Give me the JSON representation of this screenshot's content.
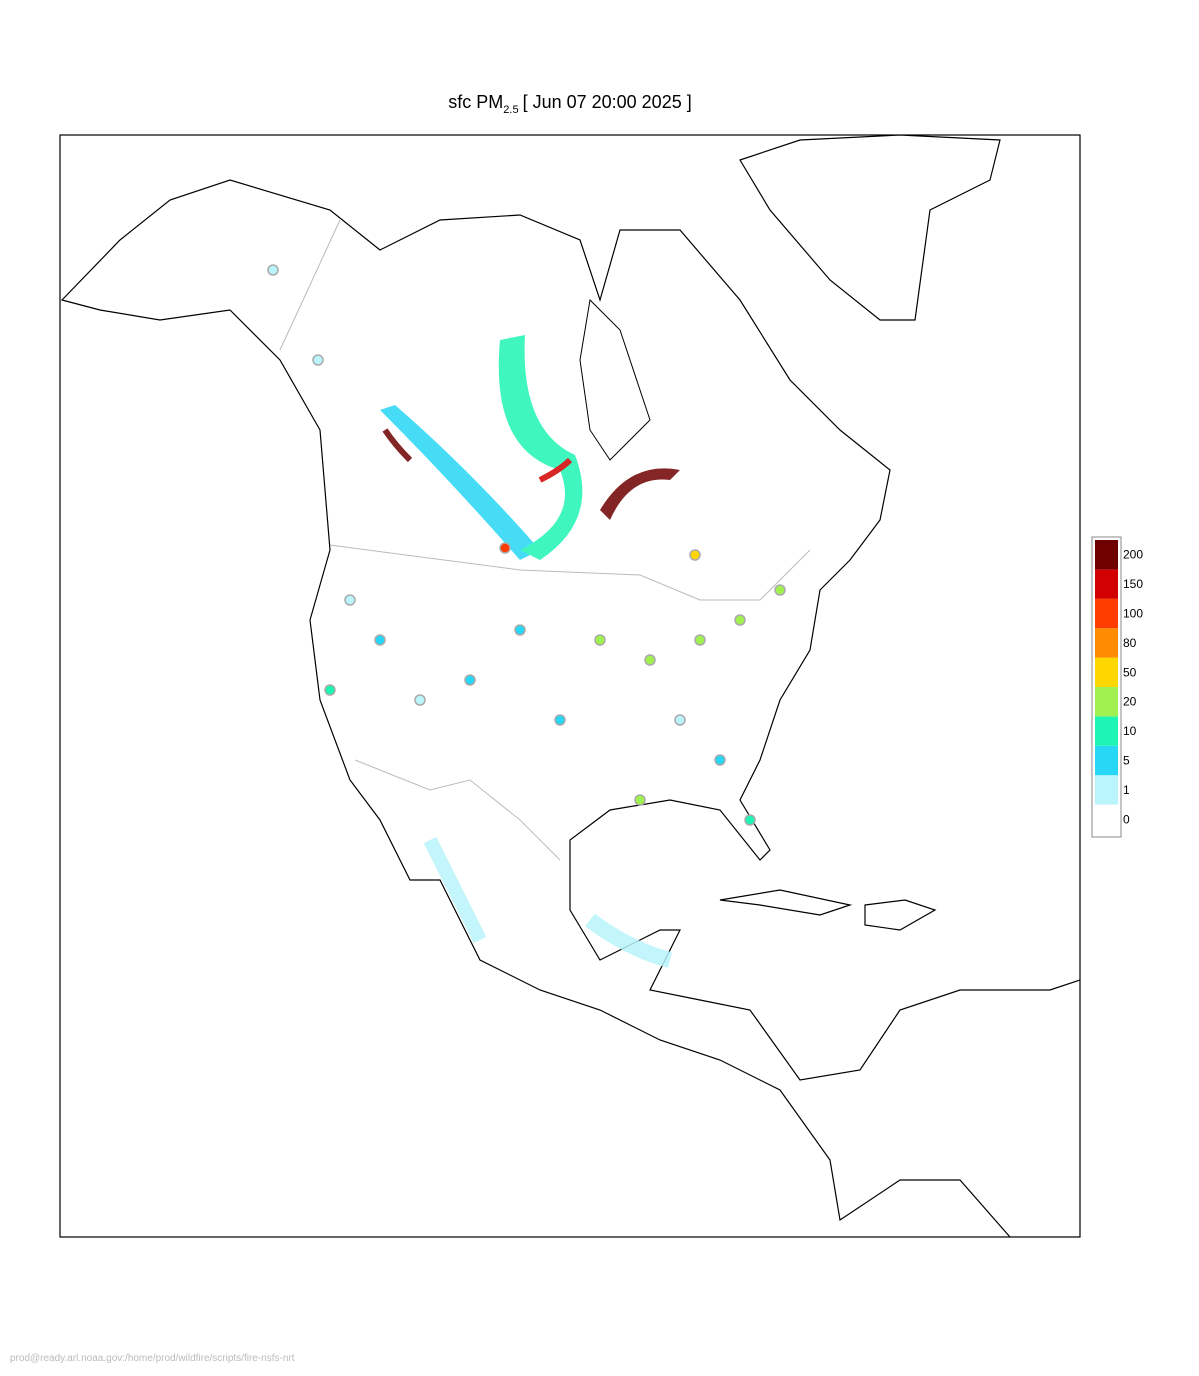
{
  "title": {
    "prefix": "sfc PM",
    "subscript": "2.5",
    "suffix": "[ Jun 07 20:00 2025 ]"
  },
  "legend": {
    "levels": [
      {
        "label": "0",
        "color": "#ffffff"
      },
      {
        "label": "1",
        "color": "#b9f5fb"
      },
      {
        "label": "5",
        "color": "#28d7f5"
      },
      {
        "label": "10",
        "color": "#1ef5b4"
      },
      {
        "label": "20",
        "color": "#a0f050"
      },
      {
        "label": "50",
        "color": "#ffd700"
      },
      {
        "label": "80",
        "color": "#ff8c00"
      },
      {
        "label": "100",
        "color": "#ff3c00"
      },
      {
        "label": "150",
        "color": "#d20000"
      },
      {
        "label": "200",
        "color": "#6e0000"
      }
    ]
  },
  "footer": "prod@ready.arl.noaa.gov:/home/prod/wildfire/scripts/fire-nsfs-nrt"
}
